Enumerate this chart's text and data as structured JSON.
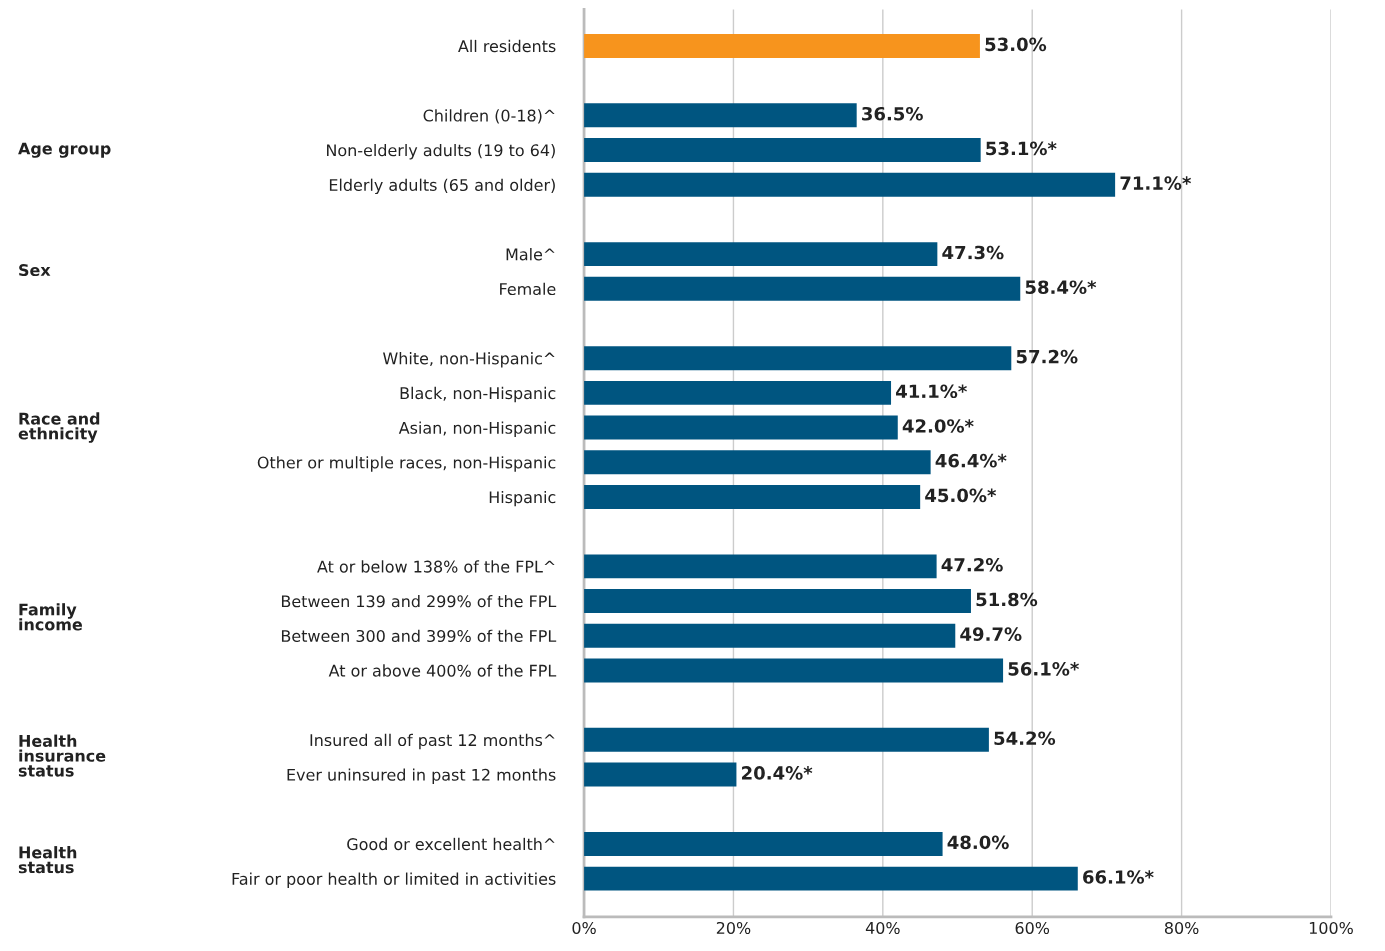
{
  "chart_data": {
    "type": "bar",
    "orientation": "horizontal",
    "categories": [
      "All residents",
      null,
      "Children (0-18)^",
      "Non-elderly adults (19 to 64)",
      "Elderly adults (65 and older)",
      null,
      "Male^",
      "Female",
      null,
      "White, non-Hispanic^",
      "Black, non-Hispanic",
      "Asian, non-Hispanic",
      "Other or multiple races, non-Hispanic",
      "Hispanic",
      null,
      "At or below 138% of the FPL^",
      "Between 139 and 299% of the FPL",
      "Between 300 and 399% of the FPL",
      "At or above 400% of the FPL",
      null,
      "Insured all of past 12 months^",
      "Ever uninsured in past 12 months",
      null,
      "Good or excellent health^",
      "Fair or poor health or limited in activities"
    ],
    "values": [
      53.0,
      null,
      36.5,
      53.1,
      71.1,
      null,
      47.3,
      58.4,
      null,
      57.2,
      41.1,
      42.0,
      46.4,
      45.0,
      null,
      47.2,
      51.8,
      49.7,
      56.1,
      null,
      54.2,
      20.4,
      null,
      48.0,
      66.1
    ],
    "value_labels": [
      "53.0%",
      null,
      "36.5%",
      "53.1%*",
      "71.1%*",
      null,
      "47.3%",
      "58.4%*",
      null,
      "57.2%",
      "41.1%*",
      "42.0%*",
      "46.4%*",
      "45.0%*",
      null,
      "47.2%",
      "51.8%",
      "49.7%",
      "56.1%*",
      null,
      "54.2%",
      "20.4%*",
      null,
      "48.0%",
      "66.1%*"
    ],
    "colors": [
      "#f7941d",
      null,
      "#005580",
      "#005580",
      "#005580",
      null,
      "#005580",
      "#005580",
      null,
      "#005580",
      "#005580",
      "#005580",
      "#005580",
      "#005580",
      null,
      "#005580",
      "#005580",
      "#005580",
      "#005580",
      null,
      "#005580",
      "#005580",
      null,
      "#005580",
      "#005580"
    ],
    "annotations": [
      "Age group",
      "Sex",
      "Race and\nethnicity",
      "Family\nincome",
      "Health\ninsurance\nstatus",
      "Health\nstatus"
    ],
    "xlim": [
      0,
      100
    ],
    "xticks": [
      {
        "value": 0,
        "label": "0%"
      },
      {
        "value": 20,
        "label": "20%"
      },
      {
        "value": 40,
        "label": "40%"
      },
      {
        "value": 60,
        "label": "60%"
      },
      {
        "value": 80,
        "label": "80%"
      },
      {
        "value": 100,
        "label": "100%"
      }
    ],
    "grid": "x"
  }
}
